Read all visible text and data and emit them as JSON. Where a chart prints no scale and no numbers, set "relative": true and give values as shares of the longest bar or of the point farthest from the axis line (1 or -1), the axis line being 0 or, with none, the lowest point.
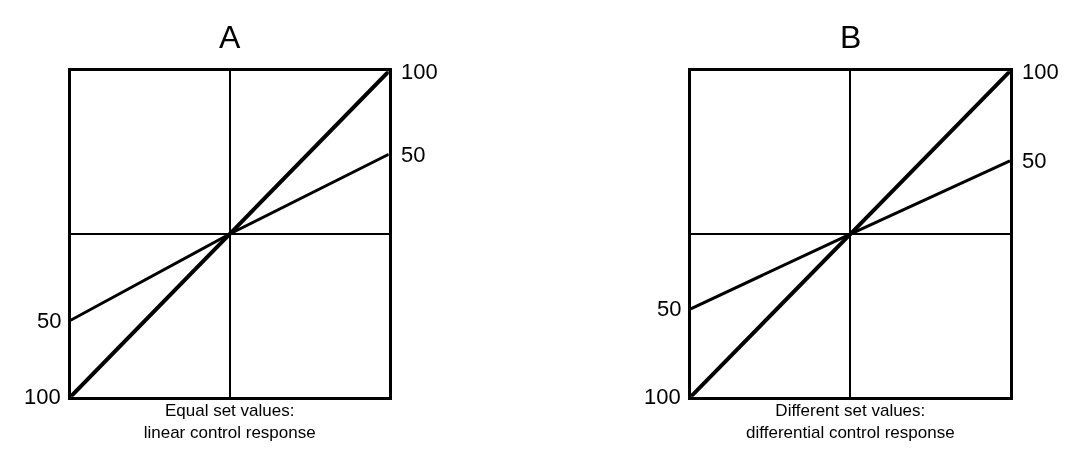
{
  "chart_data": [
    {
      "type": "line",
      "title": "A",
      "xlabel": "Equal set values:\nlinear control response",
      "relative": true,
      "categories": [
        null,
        null,
        null
      ],
      "series": [
        {
          "name": "100",
          "color": "#000000",
          "values": [
            -1,
            0,
            1
          ]
        },
        {
          "name": "50",
          "color": "#000000",
          "values": [
            -0.53,
            0,
            0.49
          ]
        }
      ]
    },
    {
      "type": "line",
      "title": "B",
      "xlabel": "Different set values:\ndifferential control response",
      "relative": true,
      "categories": [
        null,
        null,
        null
      ],
      "series": [
        {
          "name": "100",
          "color": "#000000",
          "values": [
            -1,
            0,
            1
          ]
        },
        {
          "name": "50",
          "color": "#000000",
          "values": [
            -0.46,
            0,
            0.45
          ]
        }
      ]
    }
  ]
}
